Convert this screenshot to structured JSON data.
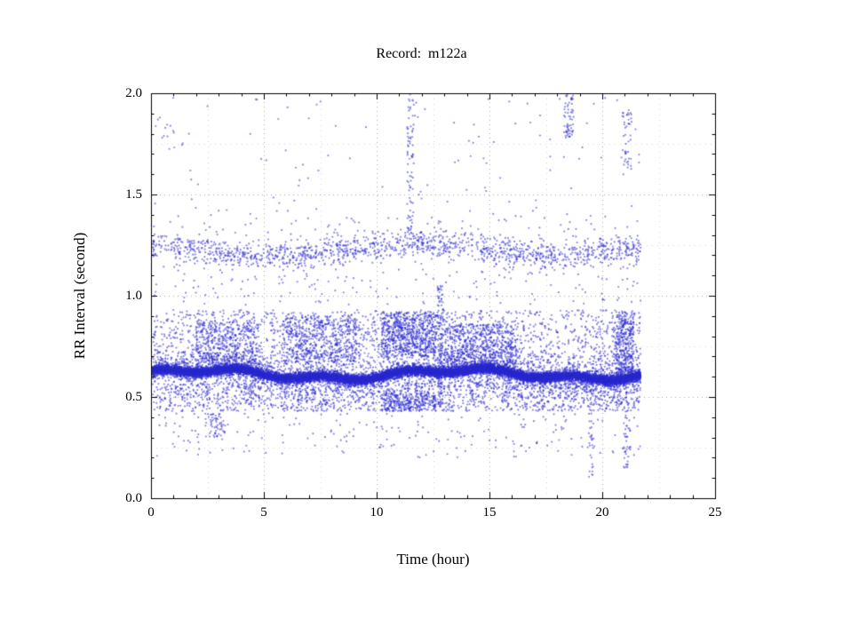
{
  "chart_data": {
    "type": "scatter",
    "title": "Record:  m122a",
    "xlabel": "Time (hour)",
    "ylabel": "RR Interval (second)",
    "xlim": [
      0,
      25
    ],
    "ylim": [
      0.0,
      2.0
    ],
    "grid": {
      "on": true,
      "major_x": 5,
      "minor_x": 2.5,
      "major_y": 0.5,
      "minor_y": 0.25
    },
    "ticks": {
      "minor_x": 1,
      "minor_y": 0.1
    },
    "x_tick_values": [
      0,
      5,
      10,
      15,
      20,
      25
    ],
    "x_tick_labels": [
      "0",
      "5",
      "10",
      "15",
      "20",
      "25"
    ],
    "y_tick_values": [
      0.0,
      0.5,
      1.0,
      1.5,
      2.0
    ],
    "y_tick_labels": [
      "0.0",
      "0.5",
      "1.0",
      "1.5",
      "2.0"
    ],
    "point_rgba": "rgba(40,40,205,0.55)",
    "point_radius": 1.1,
    "frame_color": "#000000",
    "grid_major_color": "#a8a8a8",
    "grid_minor_color": "#d2d2d2",
    "seed": 1337,
    "data_time_range_hours": [
      0.0,
      21.7
    ],
    "bands": [
      {
        "name": "core-band",
        "t0": 0.05,
        "t1": 21.7,
        "dist": "gauss",
        "mean": 0.612,
        "sd": 0.012,
        "n": 15000,
        "wander": [
          [
            0.022,
            0.55,
            0.3
          ],
          [
            0.012,
            1.7,
            1.2
          ]
        ]
      },
      {
        "name": "core-halo",
        "t0": 0.05,
        "t1": 21.7,
        "dist": "gauss",
        "mean": 0.615,
        "sd": 0.05,
        "n": 2500,
        "wander": [
          [
            0.022,
            0.55,
            0.3
          ]
        ]
      },
      {
        "name": "upper-cloud",
        "t0": 0.1,
        "t1": 21.7,
        "dist": "uniform",
        "ylo": 0.66,
        "yhi": 0.93,
        "n": 1500
      },
      {
        "name": "lower-cloud",
        "t0": 0.1,
        "t1": 21.7,
        "dist": "uniform",
        "ylo": 0.43,
        "yhi": 0.57,
        "n": 1400
      },
      {
        "name": "blob-2-5",
        "t0": 2.0,
        "t1": 4.8,
        "dist": "uniform",
        "ylo": 0.66,
        "yhi": 0.88,
        "n": 450
      },
      {
        "name": "blob-6-9",
        "t0": 5.8,
        "t1": 9.2,
        "dist": "uniform",
        "ylo": 0.67,
        "yhi": 0.9,
        "n": 500
      },
      {
        "name": "blob-10-12",
        "t0": 10.2,
        "t1": 12.65,
        "dist": "uniform",
        "ylo": 0.7,
        "yhi": 0.92,
        "n": 700
      },
      {
        "name": "stripe-10-12-low",
        "t0": 10.2,
        "t1": 12.65,
        "dist": "uniform",
        "ylo": 0.43,
        "yhi": 0.52,
        "n": 250
      },
      {
        "name": "blob-13-16",
        "t0": 13.0,
        "t1": 16.2,
        "dist": "uniform",
        "ylo": 0.64,
        "yhi": 0.86,
        "n": 600
      },
      {
        "name": "band-1p2",
        "t0": 0.05,
        "t1": 21.7,
        "dist": "gauss",
        "mean": 1.225,
        "sd": 0.035,
        "n": 1300,
        "wander": [
          [
            0.03,
            0.5,
            2.0
          ]
        ]
      },
      {
        "name": "band-1p2-halo",
        "t0": 0.05,
        "t1": 21.7,
        "dist": "gauss",
        "mean": 1.23,
        "sd": 0.09,
        "n": 250
      },
      {
        "name": "mid-sparse",
        "t0": 0.1,
        "t1": 21.7,
        "dist": "uniform",
        "ylo": 0.95,
        "yhi": 1.12,
        "n": 110
      },
      {
        "name": "high-sparse",
        "t0": 0.1,
        "t1": 21.7,
        "dist": "uniform",
        "ylo": 1.35,
        "yhi": 1.98,
        "n": 110
      },
      {
        "name": "low-sparse",
        "t0": 0.1,
        "t1": 21.7,
        "dist": "uniform",
        "ylo": 0.2,
        "yhi": 0.42,
        "n": 200
      },
      {
        "name": "low-cluster-3",
        "t0": 2.4,
        "t1": 3.3,
        "dist": "uniform",
        "ylo": 0.3,
        "yhi": 0.42,
        "n": 60
      },
      {
        "name": "streak-11p5-high",
        "t0": 11.35,
        "t1": 11.65,
        "dist": "uniform",
        "ylo": 1.3,
        "yhi": 2.0,
        "n": 80
      },
      {
        "name": "cluster-18p5-high",
        "t0": 18.3,
        "t1": 18.75,
        "dist": "uniform",
        "ylo": 1.78,
        "yhi": 2.0,
        "n": 60
      },
      {
        "name": "cluster-21-high",
        "t0": 20.85,
        "t1": 21.3,
        "dist": "uniform",
        "ylo": 1.62,
        "yhi": 1.92,
        "n": 45
      },
      {
        "name": "streak-19p5-low",
        "t0": 19.4,
        "t1": 19.6,
        "dist": "uniform",
        "ylo": 0.1,
        "yhi": 0.55,
        "n": 35
      },
      {
        "name": "streak-21-low",
        "t0": 20.95,
        "t1": 21.25,
        "dist": "uniform",
        "ylo": 0.15,
        "yhi": 0.5,
        "n": 45
      },
      {
        "name": "column-12p8",
        "t0": 12.7,
        "t1": 12.95,
        "dist": "uniform",
        "ylo": 0.45,
        "yhi": 1.05,
        "n": 130
      },
      {
        "name": "blob-21",
        "t0": 20.6,
        "t1": 21.4,
        "dist": "uniform",
        "ylo": 0.6,
        "yhi": 0.92,
        "n": 350
      },
      {
        "name": "left-high",
        "t0": 0.2,
        "t1": 1.2,
        "dist": "uniform",
        "ylo": 1.7,
        "yhi": 1.9,
        "n": 12
      }
    ]
  }
}
